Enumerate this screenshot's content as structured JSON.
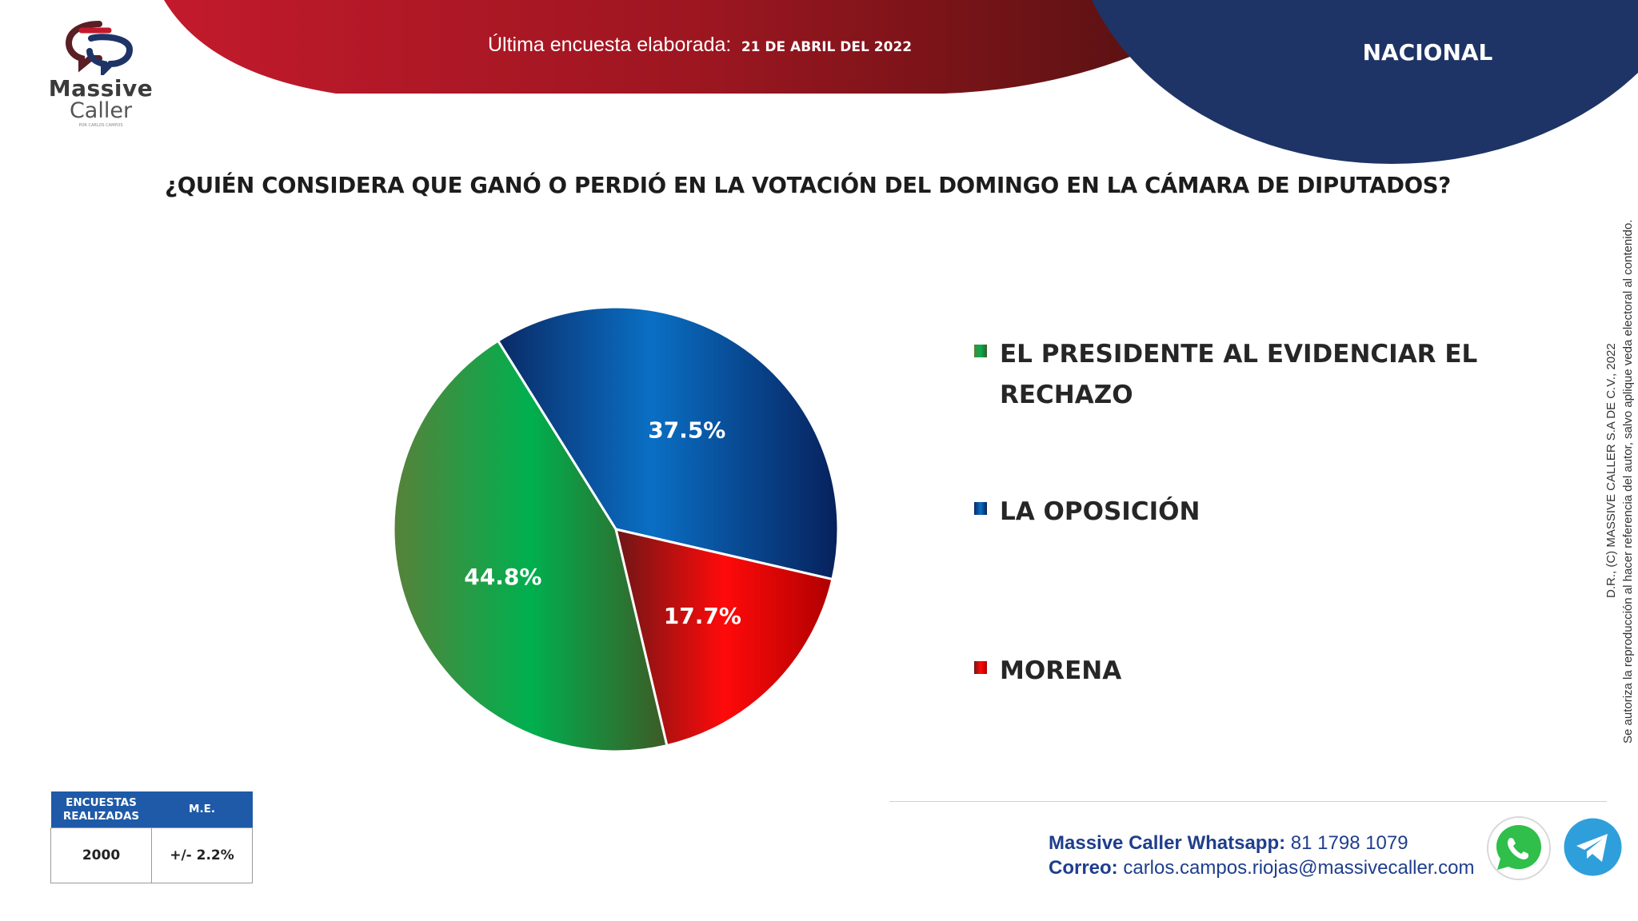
{
  "brand": {
    "name_line1": "Massive",
    "name_line2": "Caller",
    "tagline": "POR CARLOS CAMPOS"
  },
  "header": {
    "survey_label": "Última encuesta elaborada:",
    "survey_date": "21 DE ABRIL DEL 2022",
    "region": "NACIONAL"
  },
  "question": "¿QUIÉN CONSIDERA QUE GANÓ O PERDIÓ EN LA VOTACIÓN DEL DOMINGO EN LA CÁMARA DE DIPUTADOS?",
  "chart_data": {
    "type": "pie",
    "slices": [
      {
        "label": "LA OPOSICIÓN",
        "value": 37.5,
        "display": "37.5%",
        "color": "#0b4ea2"
      },
      {
        "label": "MORENA",
        "value": 17.7,
        "display": "17.7%",
        "color": "#d40f0f"
      },
      {
        "label": "EL PRESIDENTE AL EVIDENCIAR EL RECHAZO",
        "value": 44.8,
        "display": "44.8%",
        "color": "#1f9a48"
      }
    ],
    "legend_order": [
      "EL PRESIDENTE AL EVIDENCIAR EL RECHAZO",
      "LA OPOSICIÓN",
      "MORENA"
    ],
    "legend_line1": "EL PRESIDENTE AL EVIDENCIAR EL",
    "legend_line2": "RECHAZO",
    "legend_placement": "right"
  },
  "stats": {
    "surveys_header": "ENCUESTAS REALIZADAS",
    "me_header": "M.E.",
    "surveys_value": "2000",
    "me_value": "+/- 2.2%"
  },
  "footer": {
    "whatsapp_label": "Massive Caller Whatsapp:",
    "whatsapp_number": "81 1798 1079",
    "email_label": "Correo:",
    "email": "carlos.campos.riojas@massivecaller.com",
    "whatsapp_icon": "whatsapp-icon",
    "telegram_icon": "telegram-icon"
  },
  "copyright": {
    "line1": "D.R., (C) MASSIVE CALLER S.A DE C.V., 2022",
    "line2": "Se autoriza la reproducción al hacer referencia del autor, salvo aplique veda electoral al contenido."
  },
  "colors": {
    "red_banner": "#b01a26",
    "navy_banner": "#1e3466",
    "table_header": "#1e5aa8",
    "contact_text": "#1f3e8c"
  }
}
